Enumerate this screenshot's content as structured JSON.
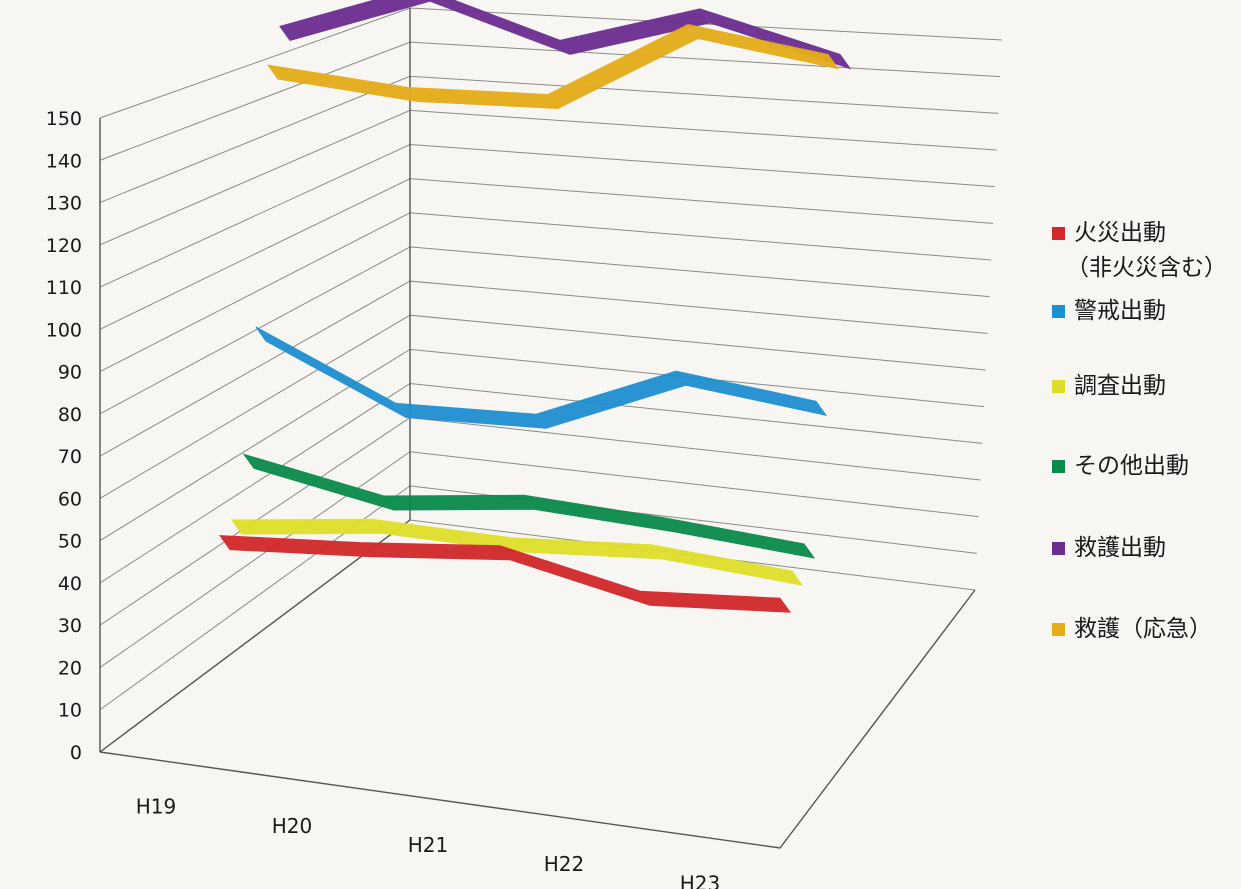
{
  "chart_data": {
    "type": "line",
    "style": "3d",
    "categories": [
      "H19",
      "H20",
      "H21",
      "H22",
      "H23"
    ],
    "ylim": [
      0,
      150
    ],
    "yticks": [
      0,
      10,
      20,
      30,
      40,
      50,
      60,
      70,
      80,
      90,
      100,
      110,
      120,
      130,
      140,
      150
    ],
    "grid": true,
    "legend_position": "right",
    "series": [
      {
        "name": "火災出動",
        "name_line2": "（非火災含む）",
        "color": "#d1282a",
        "values": [
          24,
          24,
          25,
          15,
          15
        ]
      },
      {
        "name": "警戒出動",
        "color": "#1e8fd0",
        "values": [
          66,
          48,
          47,
          60,
          54
        ]
      },
      {
        "name": "調査出動",
        "color": "#dede2a",
        "values": [
          24,
          26,
          23,
          23,
          18
        ]
      },
      {
        "name": "その他出動",
        "color": "#0a8a4a",
        "values": [
          37,
          28,
          30,
          26,
          21
        ]
      },
      {
        "name": "救護出動",
        "color": "#6b2d8f",
        "values": [
          136,
          148,
          136,
          146,
          136
        ]
      },
      {
        "name": "救護（応急）",
        "color": "#e5ac1a",
        "values": [
          130,
          126,
          126,
          146,
          140
        ]
      }
    ]
  }
}
